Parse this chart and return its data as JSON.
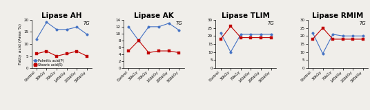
{
  "x_labels": [
    "Control",
    "30kGy",
    "70kGy",
    "140kGy",
    "200kGy",
    "500kGy"
  ],
  "panels": [
    {
      "title": "Lipase AH",
      "ylim": [
        0,
        20
      ],
      "yticks": [
        0,
        5,
        10,
        15,
        20
      ],
      "ylabel": true,
      "annotation": "TG",
      "palmitic": [
        12,
        19,
        16,
        16,
        17,
        14
      ],
      "stearic": [
        6,
        7,
        5,
        6,
        7,
        5
      ]
    },
    {
      "title": "Lipase AK",
      "ylim": [
        0,
        14
      ],
      "yticks": [
        0,
        2,
        4,
        6,
        8,
        10,
        12,
        14
      ],
      "ylabel": false,
      "annotation": "TG",
      "palmitic": [
        12,
        8,
        12,
        12,
        13,
        11
      ],
      "stearic": [
        5,
        8,
        4.5,
        5,
        5,
        4.5
      ]
    },
    {
      "title": "Lipase TLIM",
      "ylim": [
        0,
        30
      ],
      "yticks": [
        0,
        5,
        10,
        15,
        20,
        25,
        30
      ],
      "ylabel": false,
      "annotation": "TG",
      "palmitic": [
        22,
        10,
        21,
        21,
        21,
        21
      ],
      "stearic": [
        18,
        26,
        19,
        19,
        19,
        19
      ]
    },
    {
      "title": "Lipase RMIM",
      "ylim": [
        0,
        30
      ],
      "yticks": [
        0,
        5,
        10,
        15,
        20,
        25,
        30
      ],
      "ylabel": false,
      "annotation": "TG",
      "palmitic": [
        22,
        9,
        21,
        20,
        20,
        20
      ],
      "stearic": [
        18,
        25,
        18,
        18,
        18,
        18
      ]
    }
  ],
  "color_palmitic": "#4472C4",
  "color_stearic": "#C00000",
  "legend_labels": [
    "Palmitic acid(P)",
    "Stearic acid(S)"
  ],
  "ylabel_text": "Fatty acid (Area %)",
  "background": "#f0eeea",
  "title_fontsize": 7.5,
  "tick_fontsize": 4.0,
  "axis_label_fontsize": 4.5,
  "annotation_fontsize": 5.0,
  "legend_fontsize": 3.5,
  "marker_size": 2.5,
  "line_width": 0.8
}
